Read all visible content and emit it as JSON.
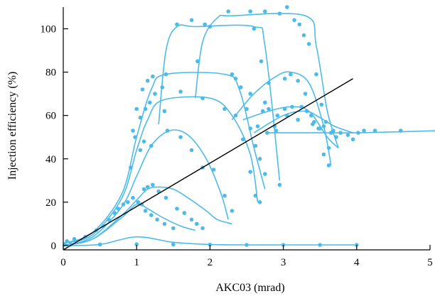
{
  "chart_data": {
    "type": "scatter",
    "xlabel": "AKC03 (mrad)",
    "ylabel": "Injection efficiency (%)",
    "xlim": [
      0,
      5
    ],
    "ylim": [
      -2,
      110
    ],
    "xticks": [
      "0",
      "1",
      "2",
      "3",
      "4",
      "5"
    ],
    "yticks": [
      "0",
      "20",
      "40",
      "60",
      "80",
      "100"
    ],
    "grid": false,
    "legend": "none",
    "colors": {
      "data": "#4dbbea",
      "reference_line": "#000000",
      "axes": "#000000"
    },
    "fit_curves": [
      {
        "x": [
          0,
          0.5,
          1.0,
          1.5,
          2.0,
          2.5,
          3.0,
          3.5,
          4.0
        ],
        "y": [
          0,
          0.5,
          4,
          1.5,
          0.5,
          0.3,
          0.3,
          0.3,
          0.3
        ]
      },
      {
        "x": [
          0,
          0.4,
          0.8,
          1.0,
          1.15,
          1.35,
          1.6,
          1.8
        ],
        "y": [
          0,
          3,
          13,
          19,
          17,
          13,
          9,
          7
        ]
      },
      {
        "x": [
          0,
          0.4,
          0.8,
          1.0,
          1.15,
          1.3,
          1.5,
          1.7,
          1.95,
          2.1,
          2.3
        ],
        "y": [
          0,
          3,
          14,
          21,
          26,
          27,
          26,
          22,
          16,
          12,
          10
        ]
      },
      {
        "x": [
          0,
          0.4,
          0.8,
          1.0,
          1.2,
          1.45,
          1.7,
          1.95,
          2.15,
          2.25
        ],
        "y": [
          0,
          4,
          18,
          32,
          46,
          53,
          51,
          40,
          24,
          12
        ]
      },
      {
        "x": [
          0,
          0.4,
          0.8,
          1.0,
          1.15,
          1.35,
          2.0,
          2.3,
          2.55,
          2.65
        ],
        "y": [
          1,
          5,
          22,
          44,
          58,
          67,
          68,
          60,
          42,
          20
        ]
      },
      {
        "x": [
          0,
          0.4,
          0.8,
          1.0,
          1.2,
          1.4,
          2.2,
          2.4,
          2.6,
          2.75
        ],
        "y": [
          1,
          6,
          24,
          50,
          72,
          79,
          79,
          72,
          45,
          26
        ]
      },
      {
        "x": [
          1.3,
          1.4,
          1.55,
          1.8,
          2.6,
          2.75,
          2.95
        ],
        "y": [
          56,
          90,
          101,
          101,
          101,
          92,
          30
        ]
      },
      {
        "x": [
          1.8,
          1.9,
          2.1,
          2.3,
          3.3,
          3.45,
          3.6,
          3.75
        ],
        "y": [
          68,
          94,
          105,
          106,
          106,
          92,
          62,
          45
        ]
      },
      {
        "x": [
          2.3,
          2.6,
          2.9,
          3.1,
          3.35,
          3.55,
          3.65
        ],
        "y": [
          58,
          70,
          78,
          80,
          75,
          55,
          37
        ]
      },
      {
        "x": [
          2.45,
          2.8,
          3.1,
          3.35,
          3.6,
          3.75
        ],
        "y": [
          58,
          62,
          64,
          62,
          50,
          45
        ]
      },
      {
        "x": [
          2.6,
          3.0,
          3.3,
          3.5,
          3.7,
          3.95
        ],
        "y": [
          52,
          60,
          62,
          59,
          55,
          52
        ]
      },
      {
        "x": [
          2.8,
          3.2,
          3.6,
          4.0,
          4.6,
          5.1
        ],
        "y": [
          52,
          52,
          52,
          52,
          52.5,
          53
        ]
      }
    ],
    "reference_line": {
      "x": [
        0,
        3.95
      ],
      "y": [
        -2,
        77
      ]
    },
    "points": [
      [
        0.02,
        0.5
      ],
      [
        0.1,
        0.5
      ],
      [
        0.5,
        0.5
      ],
      [
        1.0,
        0.6
      ],
      [
        1.5,
        0.5
      ],
      [
        2.0,
        0.4
      ],
      [
        2.5,
        0.3
      ],
      [
        3.0,
        0.3
      ],
      [
        3.5,
        0.3
      ],
      [
        4.0,
        0.3
      ],
      [
        0.05,
        2
      ],
      [
        0.15,
        3
      ],
      [
        0.3,
        4
      ],
      [
        0.45,
        7
      ],
      [
        0.55,
        9
      ],
      [
        0.62,
        12
      ],
      [
        0.7,
        15
      ],
      [
        0.75,
        17
      ],
      [
        0.82,
        19
      ],
      [
        0.88,
        20
      ],
      [
        0.95,
        22
      ],
      [
        1.02,
        20
      ],
      [
        1.07,
        19
      ],
      [
        1.12,
        16
      ],
      [
        1.2,
        14
      ],
      [
        1.28,
        12
      ],
      [
        1.38,
        10
      ],
      [
        1.5,
        8
      ],
      [
        1.1,
        26
      ],
      [
        1.15,
        27
      ],
      [
        1.22,
        28
      ],
      [
        1.3,
        25
      ],
      [
        1.4,
        22
      ],
      [
        1.55,
        17
      ],
      [
        1.65,
        15
      ],
      [
        1.75,
        12
      ],
      [
        1.82,
        10
      ],
      [
        1.9,
        8
      ],
      [
        0.95,
        53
      ],
      [
        1.05,
        44
      ],
      [
        1.1,
        48
      ],
      [
        1.2,
        46
      ],
      [
        1.42,
        53
      ],
      [
        1.6,
        50
      ],
      [
        1.75,
        44
      ],
      [
        1.9,
        36
      ],
      [
        2.05,
        35
      ],
      [
        2.2,
        23
      ],
      [
        2.3,
        16
      ],
      [
        0.92,
        36
      ],
      [
        0.98,
        50
      ],
      [
        1.05,
        59
      ],
      [
        1.12,
        63
      ],
      [
        1.18,
        66
      ],
      [
        1.25,
        70
      ],
      [
        1.35,
        73
      ],
      [
        1.6,
        71
      ],
      [
        1.9,
        68
      ],
      [
        2.2,
        63
      ],
      [
        2.35,
        60
      ],
      [
        2.45,
        49
      ],
      [
        2.55,
        34
      ],
      [
        2.62,
        23
      ],
      [
        2.68,
        20
      ],
      [
        1.0,
        63
      ],
      [
        1.08,
        72
      ],
      [
        1.15,
        76
      ],
      [
        1.22,
        78
      ],
      [
        1.4,
        79
      ],
      [
        2.3,
        79
      ],
      [
        2.42,
        73
      ],
      [
        2.55,
        54
      ],
      [
        2.62,
        46
      ],
      [
        2.68,
        40
      ],
      [
        2.75,
        33
      ],
      [
        1.38,
        62
      ],
      [
        1.55,
        102
      ],
      [
        1.75,
        104
      ],
      [
        1.83,
        85
      ],
      [
        1.93,
        102
      ],
      [
        2.6,
        100
      ],
      [
        2.7,
        85
      ],
      [
        2.8,
        75
      ],
      [
        2.88,
        55
      ],
      [
        2.95,
        28
      ],
      [
        2.0,
        101
      ],
      [
        2.25,
        108
      ],
      [
        2.55,
        108
      ],
      [
        2.75,
        108
      ],
      [
        2.95,
        107
      ],
      [
        3.05,
        110
      ],
      [
        3.15,
        104
      ],
      [
        3.22,
        102
      ],
      [
        3.28,
        97
      ],
      [
        3.35,
        93
      ],
      [
        3.45,
        79
      ],
      [
        3.52,
        65
      ],
      [
        3.58,
        57
      ],
      [
        3.62,
        45
      ],
      [
        2.35,
        77
      ],
      [
        2.55,
        70
      ],
      [
        2.75,
        66
      ],
      [
        3.02,
        77
      ],
      [
        3.1,
        79
      ],
      [
        3.2,
        76
      ],
      [
        3.3,
        70
      ],
      [
        3.38,
        60
      ],
      [
        3.48,
        54
      ],
      [
        3.55,
        42
      ],
      [
        3.62,
        37
      ],
      [
        2.5,
        63
      ],
      [
        2.72,
        62
      ],
      [
        2.8,
        63
      ],
      [
        2.92,
        60
      ],
      [
        3.02,
        63
      ],
      [
        3.12,
        64
      ],
      [
        3.25,
        64
      ],
      [
        3.32,
        62
      ],
      [
        3.42,
        57
      ],
      [
        3.55,
        55
      ],
      [
        3.65,
        52
      ],
      [
        3.72,
        50
      ],
      [
        2.65,
        55
      ],
      [
        2.78,
        52
      ],
      [
        2.9,
        53
      ],
      [
        3.05,
        60
      ],
      [
        3.2,
        58
      ],
      [
        3.4,
        56
      ],
      [
        3.5,
        54
      ],
      [
        3.68,
        53
      ],
      [
        3.78,
        52
      ],
      [
        3.88,
        51
      ],
      [
        3.95,
        49
      ],
      [
        4.02,
        52
      ],
      [
        4.1,
        53
      ],
      [
        4.25,
        53
      ],
      [
        4.6,
        53
      ]
    ]
  }
}
